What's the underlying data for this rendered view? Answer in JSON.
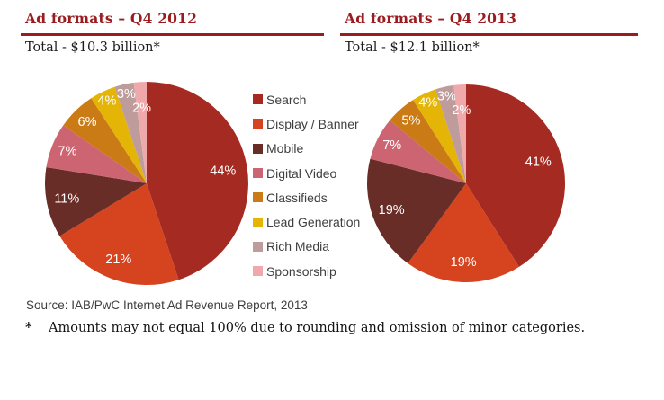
{
  "colors": {
    "accent": "#9b1c1e",
    "legend_text": "#3f3f3f",
    "slice_label_text": "#ffffff"
  },
  "legend": {
    "items": [
      {
        "label": "Search",
        "color": "#a52b22"
      },
      {
        "label": "Display / Banner",
        "color": "#d5431f"
      },
      {
        "label": "Mobile",
        "color": "#682d27"
      },
      {
        "label": "Digital Video",
        "color": "#cd6472"
      },
      {
        "label": "Classifieds",
        "color": "#cb7b16"
      },
      {
        "label": "Lead Generation",
        "color": "#e4b407"
      },
      {
        "label": "Rich Media",
        "color": "#be9c9c"
      },
      {
        "label": "Sponsorship",
        "color": "#f0a9ab"
      }
    ]
  },
  "chart_data": [
    {
      "type": "pie",
      "title": "Ad formats – Q4 2012",
      "subtitle": "Total - $10.3 billion*",
      "total_usd_billion": 10.3,
      "categories": [
        "Search",
        "Display / Banner",
        "Mobile",
        "Digital Video",
        "Classifieds",
        "Lead Generation",
        "Rich Media",
        "Sponsorship"
      ],
      "values": [
        44,
        21,
        11,
        7,
        6,
        4,
        3,
        2
      ],
      "unit": "%",
      "labels": [
        "44%",
        "21%",
        "11%",
        "7%",
        "6%",
        "4%",
        "3%",
        "2%"
      ],
      "colors": [
        "#a52b22",
        "#d5431f",
        "#682d27",
        "#cd6472",
        "#cb7b16",
        "#e4b407",
        "#be9c9c",
        "#f0a9ab"
      ],
      "start_angle_deg": -90,
      "direction": "clockwise",
      "legend_position": "center-between-charts"
    },
    {
      "type": "pie",
      "title": "Ad formats – Q4 2013",
      "subtitle": "Total - $12.1 billion*",
      "total_usd_billion": 12.1,
      "categories": [
        "Search",
        "Display / Banner",
        "Mobile",
        "Digital Video",
        "Classifieds",
        "Lead Generation",
        "Rich Media",
        "Sponsorship"
      ],
      "values": [
        41,
        19,
        19,
        7,
        5,
        4,
        3,
        2
      ],
      "unit": "%",
      "labels": [
        "41%",
        "19%",
        "19%",
        "7%",
        "5%",
        "4%",
        "3%",
        "2%"
      ],
      "colors": [
        "#a52b22",
        "#d5431f",
        "#682d27",
        "#cd6472",
        "#cb7b16",
        "#e4b407",
        "#be9c9c",
        "#f0a9ab"
      ],
      "start_angle_deg": -90,
      "direction": "clockwise",
      "legend_position": "center-between-charts"
    }
  ],
  "notes": {
    "source": "Source: IAB/PwC Internet Ad Revenue Report, 2013",
    "footnote_marker": "*",
    "footnote": "Amounts may not equal 100% due to rounding and omission of minor categories."
  }
}
